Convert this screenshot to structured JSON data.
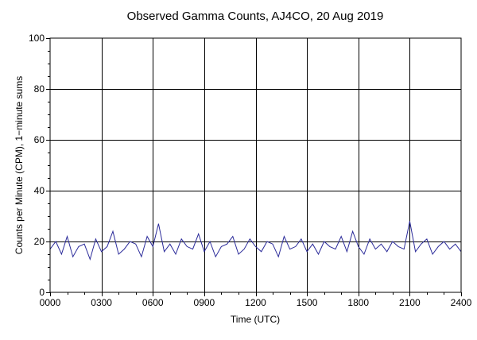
{
  "chart_data": {
    "type": "line",
    "title": "Observed Gamma Counts, AJ4CO, 20 Aug 2019",
    "xlabel": "Time (UTC)",
    "ylabel": "Counts per Minute (CPM), 1−minute sums",
    "xlim": [
      0,
      1440
    ],
    "ylim": [
      0,
      100
    ],
    "x_ticks": [
      {
        "value": 0,
        "label": "0000"
      },
      {
        "value": 180,
        "label": "0300"
      },
      {
        "value": 360,
        "label": "0600"
      },
      {
        "value": 540,
        "label": "0900"
      },
      {
        "value": 720,
        "label": "1200"
      },
      {
        "value": 900,
        "label": "1500"
      },
      {
        "value": 1080,
        "label": "1800"
      },
      {
        "value": 1260,
        "label": "2100"
      },
      {
        "value": 1440,
        "label": "2400"
      }
    ],
    "y_ticks": [
      {
        "value": 0,
        "label": "0"
      },
      {
        "value": 20,
        "label": "20"
      },
      {
        "value": 40,
        "label": "40"
      },
      {
        "value": 60,
        "label": "60"
      },
      {
        "value": 80,
        "label": "80"
      },
      {
        "value": 100,
        "label": "100"
      }
    ],
    "grid": true,
    "legend": "none",
    "series": [
      {
        "color": "#2b2b9a",
        "x": [
          0,
          20,
          40,
          60,
          80,
          100,
          120,
          140,
          160,
          180,
          200,
          220,
          240,
          260,
          280,
          300,
          320,
          340,
          360,
          380,
          400,
          420,
          440,
          460,
          480,
          500,
          520,
          540,
          560,
          580,
          600,
          620,
          640,
          660,
          680,
          700,
          720,
          740,
          760,
          780,
          800,
          820,
          840,
          860,
          880,
          900,
          920,
          940,
          960,
          980,
          1000,
          1020,
          1040,
          1060,
          1080,
          1100,
          1120,
          1140,
          1160,
          1180,
          1200,
          1220,
          1240,
          1260,
          1280,
          1300,
          1320,
          1340,
          1360,
          1380,
          1400,
          1420,
          1440
        ],
        "y": [
          17,
          20,
          15,
          22,
          14,
          18,
          19,
          13,
          21,
          16,
          18,
          24,
          15,
          17,
          20,
          19,
          14,
          22,
          18,
          27,
          16,
          19,
          15,
          21,
          18,
          17,
          23,
          16,
          20,
          14,
          18,
          19,
          22,
          15,
          17,
          21,
          18,
          16,
          20,
          19,
          14,
          22,
          17,
          18,
          21,
          16,
          19,
          15,
          20,
          18,
          17,
          22,
          16,
          24,
          18,
          15,
          21,
          17,
          19,
          16,
          20,
          18,
          17,
          28,
          16,
          19,
          21,
          15,
          18,
          20,
          17,
          19,
          16
        ]
      }
    ]
  }
}
